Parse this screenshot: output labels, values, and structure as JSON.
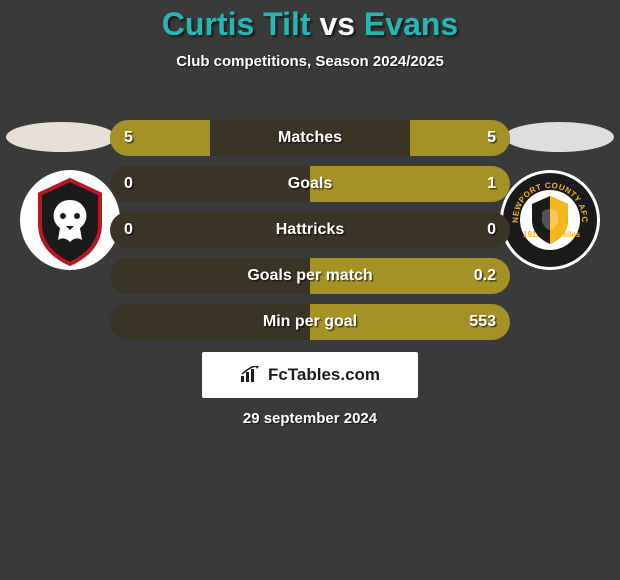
{
  "title": {
    "player1": "Curtis Tilt",
    "vs": "vs",
    "player2": "Evans",
    "color_accent": "#27b7b3",
    "color_vs": "#ffffff"
  },
  "subtitle": "Club competitions, Season 2024/2025",
  "bar_colors": {
    "base": "#393426",
    "fill": "#a59125",
    "radius": 18
  },
  "rows": [
    {
      "label": "Matches",
      "left": "5",
      "right": "5",
      "left_pct": 50,
      "right_pct": 50
    },
    {
      "label": "Goals",
      "left": "0",
      "right": "1",
      "left_pct": 0,
      "right_pct": 100
    },
    {
      "label": "Hattricks",
      "left": "0",
      "right": "0",
      "left_pct": 0,
      "right_pct": 0
    },
    {
      "label": "Goals per match",
      "left": "",
      "right": "0.2",
      "left_pct": 0,
      "right_pct": 100
    },
    {
      "label": "Min per goal",
      "left": "",
      "right": "553",
      "left_pct": 0,
      "right_pct": 100
    }
  ],
  "headshots": {
    "left_bg": "#e6e0d6",
    "right_bg": "#dedede"
  },
  "clubs": {
    "left": {
      "name": "salford-city",
      "bg": "#ffffff",
      "shield_fill": "#1a1a1a",
      "shield_stroke": "#b8181f"
    },
    "right": {
      "name": "newport-county",
      "bg": "#1a1a1a",
      "ring": "#f4b61a",
      "text": "NEWPORT COUNTY AFC",
      "year": "1912",
      "sub": "exiles"
    }
  },
  "footer": {
    "brand": "FcTables.com",
    "date": "29 september 2024",
    "icon_name": "bar-chart-icon"
  }
}
